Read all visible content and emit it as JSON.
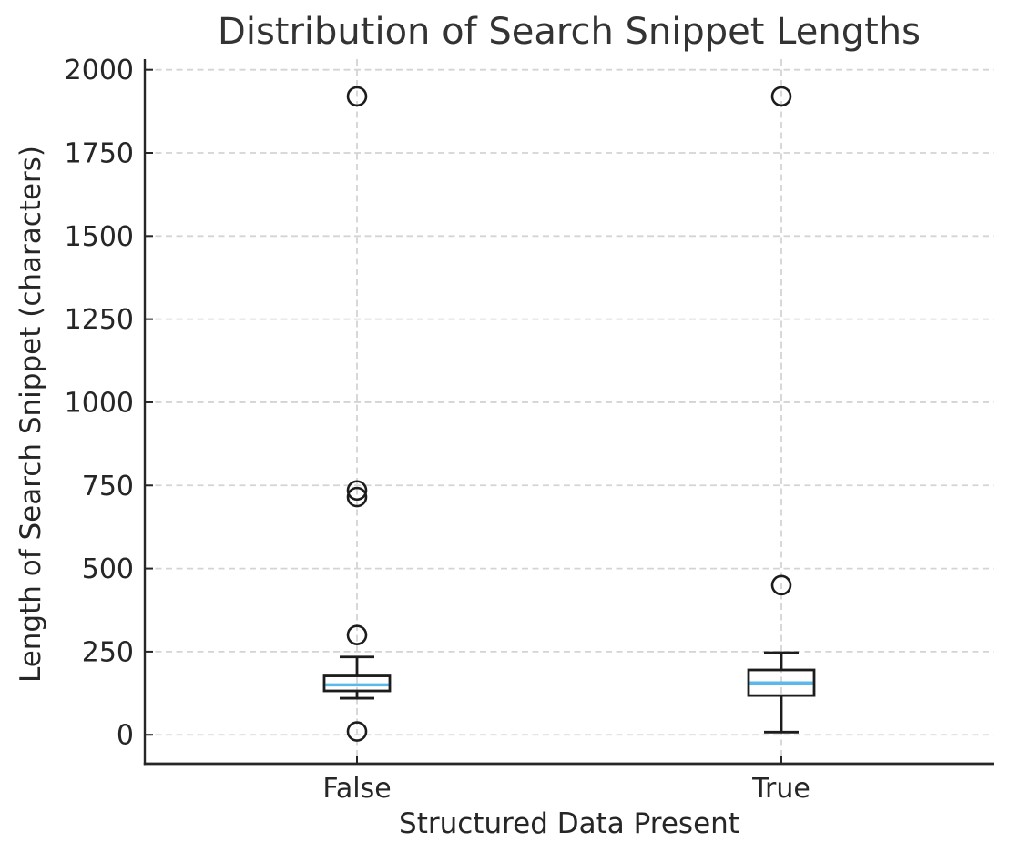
{
  "chart_data": {
    "type": "boxplot",
    "title": "Distribution of Search Snippet Lengths",
    "xlabel": "Structured Data Present",
    "ylabel": "Length of Search Snippet (characters)",
    "categories": [
      "False",
      "True"
    ],
    "y_ticks": [
      0,
      250,
      500,
      750,
      1000,
      1250,
      1500,
      1750,
      2000
    ],
    "ylim": [
      -87,
      2032
    ],
    "grid": {
      "horizontal": true,
      "vertical": true,
      "style": "dashed"
    },
    "legend": false,
    "series": [
      {
        "category": "False",
        "whisker_low": 110,
        "q1": 132,
        "median": 150,
        "q3": 177,
        "whisker_high": 234,
        "outliers": [
          10,
          300,
          715,
          735,
          1920
        ]
      },
      {
        "category": "True",
        "whisker_low": 8,
        "q1": 118,
        "median": 156,
        "q3": 195,
        "whisker_high": 247,
        "outliers": [
          450,
          1920
        ]
      }
    ],
    "colors": {
      "box_edge": "#1c1c1c",
      "median": "#5bb8e8",
      "grid": "#d4d4d4",
      "axis": "#262626",
      "text": "#262626",
      "background": "#ffffff"
    }
  }
}
